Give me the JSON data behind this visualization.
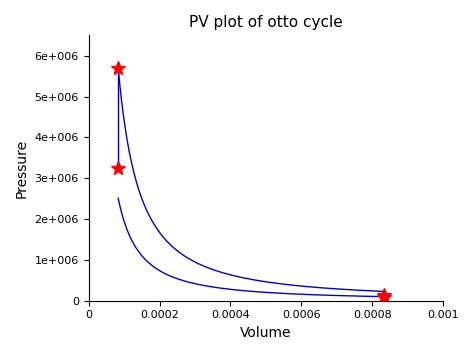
{
  "title": "PV plot of otto cycle",
  "xlabel": "Volume",
  "ylabel": "Pressure",
  "xlim": [
    0,
    0.001
  ],
  "ylim": [
    0,
    6500000
  ],
  "line_color": "#0000CC",
  "marker_color": "red",
  "marker_style": "*",
  "marker_size": 10,
  "V_small": 8.33e-05,
  "V_large": 0.000833,
  "P1": 100000,
  "P2": 3250000,
  "P3": 5700000,
  "P4": 150000,
  "gamma": 1.4,
  "background_color": "#ffffff",
  "ytick_values": [
    0,
    1000000,
    2000000,
    3000000,
    4000000,
    5000000,
    6000000
  ],
  "ytick_labels": [
    "0",
    "1e+006",
    "2e+006",
    "3e+006",
    "4e+006",
    "5e+006",
    "6e+006"
  ],
  "xtick_values": [
    0,
    0.0002,
    0.0004,
    0.0006,
    0.0008,
    0.001
  ],
  "xtick_labels": [
    "0",
    "0.0002",
    "0.0004",
    "0.0006",
    "0.0008",
    "0.001"
  ]
}
